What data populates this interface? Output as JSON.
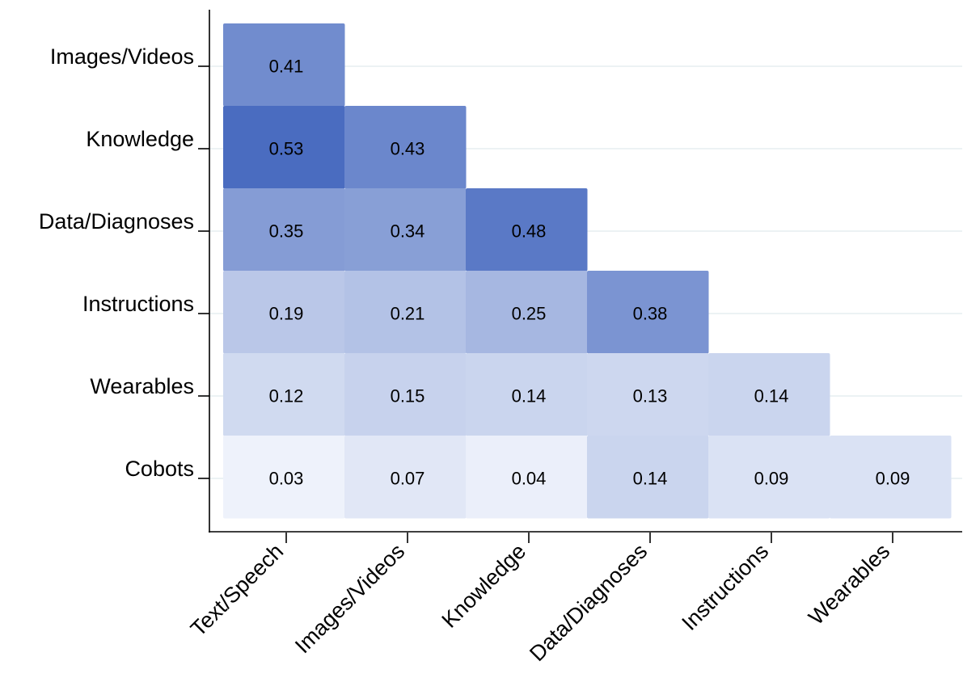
{
  "chart_data": {
    "type": "heatmap",
    "title": "",
    "xlabel": "",
    "ylabel": "",
    "x_categories": [
      "Text/Speech",
      "Images/Videos",
      "Knowledge",
      "Data/Diagnoses",
      "Instructions",
      "Wearables"
    ],
    "y_categories": [
      "Images/Videos",
      "Knowledge",
      "Data/Diagnoses",
      "Instructions",
      "Wearables",
      "Cobots"
    ],
    "values": [
      [
        0.41,
        null,
        null,
        null,
        null,
        null
      ],
      [
        0.53,
        0.43,
        null,
        null,
        null,
        null
      ],
      [
        0.35,
        0.34,
        0.48,
        null,
        null,
        null
      ],
      [
        0.19,
        0.21,
        0.25,
        0.38,
        null,
        null
      ],
      [
        0.12,
        0.15,
        0.14,
        0.13,
        0.14,
        null
      ],
      [
        0.03,
        0.07,
        0.04,
        0.14,
        0.09,
        0.09
      ]
    ],
    "value_labels": [
      [
        "0.41",
        "",
        "",
        "",
        "",
        ""
      ],
      [
        "0.53",
        "0.43",
        "",
        "",
        "",
        ""
      ],
      [
        "0.35",
        "0.34",
        "0.48",
        "",
        "",
        ""
      ],
      [
        "0.19",
        "0.21",
        "0.25",
        "0.38",
        "",
        ""
      ],
      [
        "0.12",
        "0.15",
        "0.14",
        "0.13",
        "0.14",
        ""
      ],
      [
        "0.03",
        "0.07",
        "0.04",
        "0.14",
        "0.09",
        "0.09"
      ]
    ],
    "color_low": "#eef2fb",
    "color_high": "#4a6cc0",
    "value_range": [
      0.03,
      0.53
    ],
    "grid": true,
    "grid_color": "#e6eef0",
    "legend": "none"
  }
}
